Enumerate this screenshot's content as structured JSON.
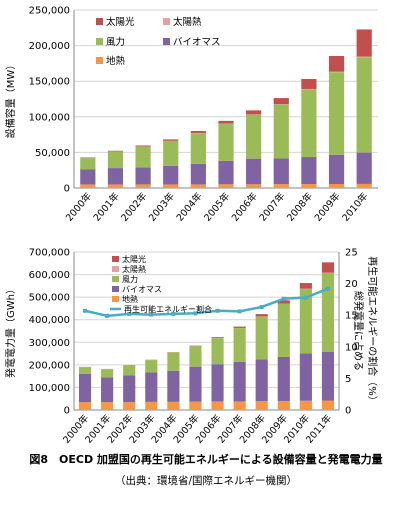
{
  "chart_data": [
    {
      "type": "bar",
      "stacked": true,
      "ylabel": "設備容量（MW）",
      "ylim": [
        0,
        250000
      ],
      "yticks": [
        "0",
        "50,000",
        "100,000",
        "150,000",
        "200,000",
        "250,000"
      ],
      "ytick_values": [
        0,
        50000,
        100000,
        150000,
        200000,
        250000
      ],
      "categories": [
        "2000年",
        "2001年",
        "2002年",
        "2003年",
        "2004年",
        "2005年",
        "2006年",
        "2007年",
        "2008年",
        "2009年",
        "2010年"
      ],
      "grid": true,
      "legend_position": "top-left",
      "series": [
        {
          "name": "地熱",
          "color": "#f79646",
          "values": [
            5000,
            5000,
            5000,
            5000,
            5000,
            5200,
            5200,
            5400,
            5500,
            5600,
            5700
          ]
        },
        {
          "name": "バイオマス",
          "color": "#8064a2",
          "values": [
            21000,
            23000,
            24000,
            26000,
            29000,
            33000,
            36000,
            36000,
            38000,
            41000,
            44000
          ]
        },
        {
          "name": "風力",
          "color": "#9bbb59",
          "values": [
            16000,
            23000,
            29000,
            35000,
            43000,
            52000,
            62000,
            76000,
            95000,
            116000,
            134000
          ]
        },
        {
          "name": "太陽熱",
          "color": "#e6a0a0",
          "values": [
            300,
            300,
            300,
            300,
            300,
            300,
            300,
            400,
            600,
            800,
            1000
          ]
        },
        {
          "name": "太陽光",
          "color": "#c0504d",
          "values": [
            700,
            1000,
            1400,
            2000,
            2700,
            3800,
            5500,
            8500,
            14000,
            22000,
            38000
          ]
        }
      ]
    },
    {
      "type": "bar",
      "stacked": true,
      "ylabel": "発電電力量（GWh）",
      "y2label": "総発電量に占める再生可能エネルギーの割合（%）",
      "ylim": [
        0,
        700000
      ],
      "y2lim": [
        0,
        25
      ],
      "yticks": [
        "0",
        "100,000",
        "200,000",
        "300,000",
        "400,000",
        "500,000",
        "600,000",
        "700,000"
      ],
      "ytick_values": [
        0,
        100000,
        200000,
        300000,
        400000,
        500000,
        600000,
        700000
      ],
      "y2ticks": [
        "0",
        "5",
        "10",
        "15",
        "20",
        "25"
      ],
      "y2tick_values": [
        0,
        5,
        10,
        15,
        20,
        25
      ],
      "categories": [
        "2000年",
        "2001年",
        "2002年",
        "2003年",
        "2004年",
        "2005年",
        "2006年",
        "2007年",
        "2008年",
        "2009年",
        "2010年",
        "2011年"
      ],
      "grid": true,
      "legend_position": "top-left",
      "series": [
        {
          "name": "地熱",
          "color": "#f79646",
          "values": [
            35000,
            35000,
            35000,
            36000,
            36000,
            37000,
            38000,
            38000,
            39000,
            40000,
            41000,
            42000
          ]
        },
        {
          "name": "バイオマス",
          "color": "#8064a2",
          "values": [
            125000,
            110000,
            118000,
            130000,
            138000,
            155000,
            165000,
            175000,
            185000,
            195000,
            210000,
            215000
          ]
        },
        {
          "name": "風力",
          "color": "#9bbb59",
          "values": [
            30000,
            36000,
            45000,
            55000,
            80000,
            90000,
            115000,
            150000,
            190000,
            235000,
            285000,
            350000
          ]
        },
        {
          "name": "太陽熱",
          "color": "#e6a0a0",
          "values": [
            500,
            500,
            500,
            500,
            500,
            500,
            500,
            600,
            800,
            1000,
            1500,
            2000
          ]
        },
        {
          "name": "太陽光",
          "color": "#c0504d",
          "values": [
            500,
            500,
            700,
            1000,
            1500,
            2500,
            4000,
            6000,
            10000,
            15000,
            25000,
            45000
          ]
        }
      ],
      "line": {
        "name": "再生可能エネルギー割合",
        "color": "#4bacc6",
        "values": [
          15.7,
          14.9,
          15.2,
          15.1,
          15.2,
          15.3,
          15.7,
          15.6,
          16.3,
          17.6,
          17.8,
          19.2
        ]
      }
    }
  ],
  "caption": {
    "title": "図8　OECD 加盟国の再生可能エネルギーによる設備容量と発電電力量",
    "source": "（出典：環境省/国際エネルギー機関）"
  }
}
